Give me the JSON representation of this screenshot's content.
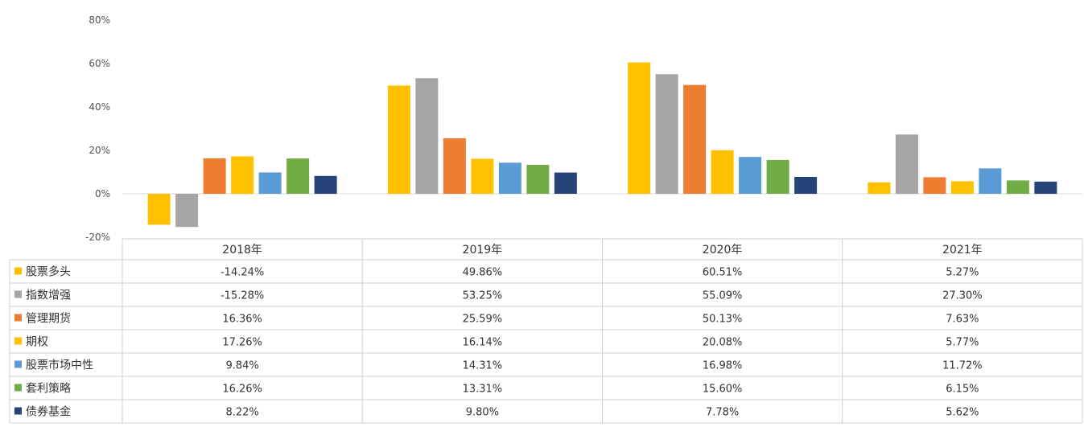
{
  "chart_data": {
    "type": "bar",
    "categories": [
      "2018年",
      "2019年",
      "2020年",
      "2021年"
    ],
    "ylim": [
      -20,
      80
    ],
    "yticks": [
      80,
      60,
      40,
      20,
      0,
      -20
    ],
    "ytick_labels": [
      "80%",
      "60%",
      "40%",
      "20%",
      "0%",
      "-20%"
    ],
    "grid": false,
    "legend": "data-table-left",
    "series": [
      {
        "name": "股票多头",
        "color": "#FFC000",
        "values": [
          -14.24,
          49.86,
          60.51,
          5.27
        ],
        "labels": [
          "-14.24%",
          "49.86%",
          "60.51%",
          "5.27%"
        ]
      },
      {
        "name": "指数增强",
        "color": "#A5A5A5",
        "values": [
          -15.28,
          53.25,
          55.09,
          27.3
        ],
        "labels": [
          "-15.28%",
          "53.25%",
          "55.09%",
          "27.30%"
        ]
      },
      {
        "name": "管理期货",
        "color": "#ED7D31",
        "values": [
          16.36,
          25.59,
          50.13,
          7.63
        ],
        "labels": [
          "16.36%",
          "25.59%",
          "50.13%",
          "7.63%"
        ]
      },
      {
        "name": "期权",
        "color": "#FFC000",
        "values": [
          17.26,
          16.14,
          20.08,
          5.77
        ],
        "labels": [
          "17.26%",
          "16.14%",
          "20.08%",
          "5.77%"
        ]
      },
      {
        "name": "股票市场中性",
        "color": "#5B9BD5",
        "values": [
          9.84,
          14.31,
          16.98,
          11.72
        ],
        "labels": [
          "9.84%",
          "14.31%",
          "16.98%",
          "11.72%"
        ]
      },
      {
        "name": "套利策略",
        "color": "#70AD47",
        "values": [
          16.26,
          13.31,
          15.6,
          6.15
        ],
        "labels": [
          "16.26%",
          "13.31%",
          "15.60%",
          "6.15%"
        ]
      },
      {
        "name": "债券基金",
        "color": "#264478",
        "values": [
          8.22,
          9.8,
          7.78,
          5.62
        ],
        "labels": [
          "8.22%",
          "9.80%",
          "7.78%",
          "5.62%"
        ]
      }
    ]
  }
}
